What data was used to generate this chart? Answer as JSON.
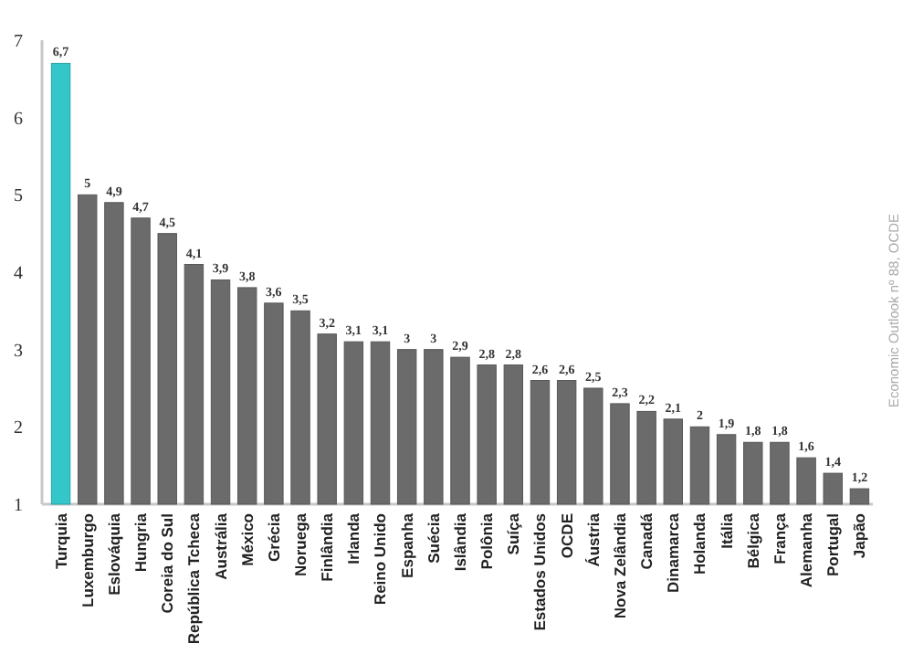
{
  "chart_data": {
    "type": "bar",
    "categories": [
      "Turquia",
      "Luxemburgo",
      "Eslováquia",
      "Hungria",
      "Coreia do Sul",
      "República Tcheca",
      "Austrália",
      "México",
      "Grécia",
      "Noruega",
      "Finlândia",
      "Irlanda",
      "Reino Unido",
      "Espanha",
      "Suécia",
      "Islândia",
      "Polônia",
      "Suíça",
      "Estados Unidos",
      "OCDE",
      "Áustria",
      "Nova Zelândia",
      "Canadá",
      "Dinamarca",
      "Holanda",
      "Itália",
      "Bélgica",
      "França",
      "Alemanha",
      "Portugal",
      "Japão"
    ],
    "values": [
      6.7,
      5,
      4.9,
      4.7,
      4.5,
      4.1,
      3.9,
      3.8,
      3.6,
      3.5,
      3.2,
      3.1,
      3.1,
      3,
      3,
      2.9,
      2.8,
      2.8,
      2.6,
      2.6,
      2.5,
      2.3,
      2.2,
      2.1,
      2,
      1.9,
      1.8,
      1.8,
      1.6,
      1.4,
      1.2
    ],
    "value_labels": [
      "6,7",
      "5",
      "4,9",
      "4,7",
      "4,5",
      "4,1",
      "3,9",
      "3,8",
      "3,6",
      "3,5",
      "3,2",
      "3,1",
      "3,1",
      "3",
      "3",
      "2,9",
      "2,8",
      "2,8",
      "2,6",
      "2,6",
      "2,5",
      "2,3",
      "2,2",
      "2,1",
      "2",
      "1,9",
      "1,8",
      "1,8",
      "1,6",
      "1,4",
      "1,2"
    ],
    "colors": [
      "#33c7c9",
      "#6b6b6b",
      "#6b6b6b",
      "#6b6b6b",
      "#6b6b6b",
      "#6b6b6b",
      "#6b6b6b",
      "#6b6b6b",
      "#6b6b6b",
      "#6b6b6b",
      "#6b6b6b",
      "#6b6b6b",
      "#6b6b6b",
      "#6b6b6b",
      "#6b6b6b",
      "#6b6b6b",
      "#6b6b6b",
      "#6b6b6b",
      "#6b6b6b",
      "#6b6b6b",
      "#6b6b6b",
      "#6b6b6b",
      "#6b6b6b",
      "#6b6b6b",
      "#6b6b6b",
      "#6b6b6b",
      "#6b6b6b",
      "#6b6b6b",
      "#6b6b6b",
      "#6b6b6b",
      "#6b6b6b"
    ],
    "ylim": [
      1,
      7
    ],
    "yticks": [
      1,
      2,
      3,
      4,
      5,
      6,
      7
    ],
    "annotations": [
      "Economic Outlook nº 88, OCDE"
    ]
  }
}
